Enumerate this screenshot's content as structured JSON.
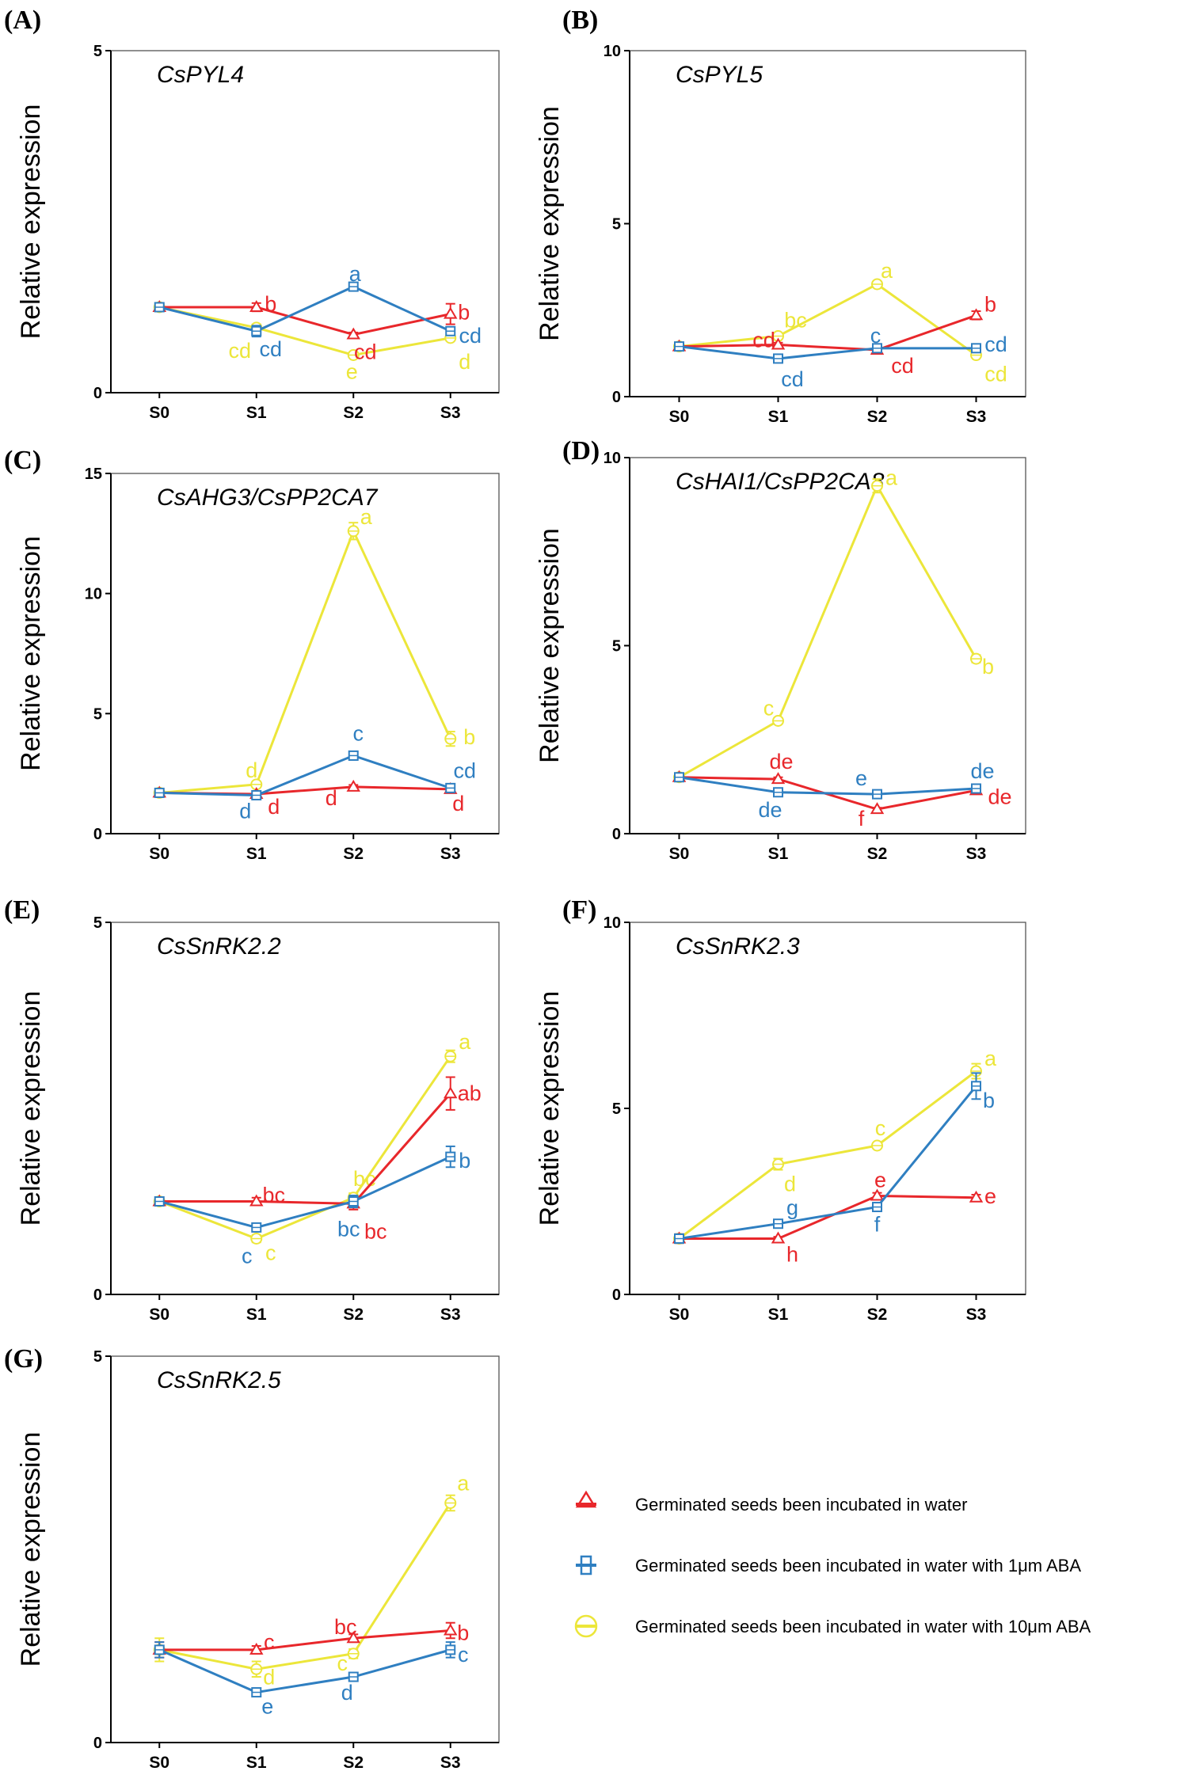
{
  "colors": {
    "water": "#e8272b",
    "aba1": "#2f7fc1",
    "aba10": "#ece63a",
    "axis": "#000000",
    "frame": "#555555"
  },
  "legend": {
    "items": [
      {
        "series": "water",
        "marker": "triangle",
        "label": "Germinated seeds been incubated in water"
      },
      {
        "series": "aba1",
        "marker": "square",
        "label": "Germinated seeds been incubated in water with 1μm ABA"
      },
      {
        "series": "aba10",
        "marker": "circle",
        "label": "Germinated seeds been incubated in water with 10μm ABA"
      }
    ]
  },
  "chart_data": [
    {
      "type": "line",
      "panel": "(A)",
      "title": "CsPYL4",
      "ylabel": "Relative expression",
      "categories": [
        "S0",
        "S1",
        "S2",
        "S3"
      ],
      "ylim": [
        0,
        5
      ],
      "yticks": [
        0,
        5
      ],
      "series": [
        {
          "key": "water",
          "values": [
            1.25,
            1.25,
            0.85,
            1.15
          ],
          "err": [
            0.04,
            0.06,
            0.03,
            0.15
          ],
          "letters": [
            "",
            "b",
            "cd",
            "b"
          ]
        },
        {
          "key": "aba1",
          "values": [
            1.25,
            0.9,
            1.55,
            0.9
          ],
          "err": [
            0.04,
            0.08,
            0.03,
            0.06
          ],
          "letters": [
            "",
            "cd",
            "a",
            "cd"
          ]
        },
        {
          "key": "aba10",
          "values": [
            1.25,
            0.95,
            0.55,
            0.8
          ],
          "err": [
            0.04,
            0.05,
            0.02,
            0.04
          ],
          "letters": [
            "",
            "cd",
            "e",
            "d"
          ]
        }
      ]
    },
    {
      "type": "line",
      "panel": "(B)",
      "title": "CsPYL5",
      "ylabel": "Relative expression",
      "categories": [
        "S0",
        "S1",
        "S2",
        "S3"
      ],
      "ylim": [
        0,
        10
      ],
      "yticks": [
        0,
        5,
        10
      ],
      "series": [
        {
          "key": "water",
          "values": [
            1.45,
            1.5,
            1.35,
            2.35
          ],
          "err": [
            0.05,
            0.06,
            0.05,
            0.12
          ],
          "letters": [
            "",
            "cd",
            "cd",
            "b"
          ]
        },
        {
          "key": "aba1",
          "values": [
            1.45,
            1.1,
            1.4,
            1.4
          ],
          "err": [
            0.05,
            0.1,
            0.06,
            0.06
          ],
          "letters": [
            "",
            "cd",
            "c",
            "cd"
          ]
        },
        {
          "key": "aba10",
          "values": [
            1.45,
            1.75,
            3.25,
            1.2
          ],
          "err": [
            0.05,
            0.06,
            0.08,
            0.05
          ],
          "letters": [
            "",
            "bc",
            "a",
            "cd"
          ]
        }
      ]
    },
    {
      "type": "line",
      "panel": "(C)",
      "title": "CsAHG3/CsPP2CA7",
      "ylabel": "Relative expression",
      "categories": [
        "S0",
        "S1",
        "S2",
        "S3"
      ],
      "ylim": [
        0,
        15
      ],
      "yticks": [
        0,
        5,
        10,
        15
      ],
      "series": [
        {
          "key": "water",
          "values": [
            1.7,
            1.65,
            1.95,
            1.85
          ],
          "err": [
            0.08,
            0.1,
            0.08,
            0.08
          ],
          "letters": [
            "",
            "d",
            "d",
            "d"
          ]
        },
        {
          "key": "aba1",
          "values": [
            1.7,
            1.6,
            3.25,
            1.9
          ],
          "err": [
            0.08,
            0.08,
            0.18,
            0.1
          ],
          "letters": [
            "",
            "d",
            "c",
            "cd"
          ]
        },
        {
          "key": "aba10",
          "values": [
            1.7,
            2.05,
            12.6,
            3.95
          ],
          "err": [
            0.08,
            0.1,
            0.35,
            0.3
          ],
          "letters": [
            "",
            "d",
            "a",
            "b"
          ]
        }
      ]
    },
    {
      "type": "line",
      "panel": "(D)",
      "title": "CsHAI1/CsPP2CA8",
      "ylabel": "Relative expression",
      "categories": [
        "S0",
        "S1",
        "S2",
        "S3"
      ],
      "ylim": [
        0,
        10
      ],
      "yticks": [
        0,
        5,
        10
      ],
      "series": [
        {
          "key": "water",
          "values": [
            1.5,
            1.45,
            0.65,
            1.15
          ],
          "err": [
            0.05,
            0.05,
            0.04,
            0.06
          ],
          "letters": [
            "",
            "de",
            "f",
            "de"
          ]
        },
        {
          "key": "aba1",
          "values": [
            1.5,
            1.1,
            1.05,
            1.2
          ],
          "err": [
            0.05,
            0.05,
            0.05,
            0.07
          ],
          "letters": [
            "",
            "de",
            "e",
            "de"
          ]
        },
        {
          "key": "aba10",
          "values": [
            1.5,
            3.0,
            9.25,
            4.65
          ],
          "err": [
            0.05,
            0.08,
            0.18,
            0.1
          ],
          "letters": [
            "",
            "c",
            "a",
            "b"
          ]
        }
      ]
    },
    {
      "type": "line",
      "panel": "(E)",
      "title": "CsSnRK2.2",
      "ylabel": "Relative expression",
      "categories": [
        "S0",
        "S1",
        "S2",
        "S3"
      ],
      "ylim": [
        0,
        5
      ],
      "yticks": [
        0,
        5
      ],
      "series": [
        {
          "key": "water",
          "values": [
            1.25,
            1.25,
            1.22,
            2.7
          ],
          "err": [
            0.04,
            0.05,
            0.08,
            0.22
          ],
          "letters": [
            "",
            "bc",
            "bc",
            "ab"
          ]
        },
        {
          "key": "aba1",
          "values": [
            1.25,
            0.9,
            1.25,
            1.85
          ],
          "err": [
            0.04,
            0.04,
            0.08,
            0.14
          ],
          "letters": [
            "",
            "c",
            "bc",
            "b"
          ]
        },
        {
          "key": "aba10",
          "values": [
            1.25,
            0.75,
            1.3,
            3.2
          ],
          "err": [
            0.04,
            0.05,
            0.06,
            0.08
          ],
          "letters": [
            "",
            "c",
            "bc",
            "a"
          ]
        }
      ]
    },
    {
      "type": "line",
      "panel": "(F)",
      "title": "CsSnRK2.3",
      "ylabel": "Relative expression",
      "categories": [
        "S0",
        "S1",
        "S2",
        "S3"
      ],
      "ylim": [
        0,
        10
      ],
      "yticks": [
        0,
        5,
        10
      ],
      "series": [
        {
          "key": "water",
          "values": [
            1.5,
            1.5,
            2.65,
            2.6
          ],
          "err": [
            0.12,
            0.05,
            0.08,
            0.08
          ],
          "letters": [
            "",
            "h",
            "e",
            "e"
          ]
        },
        {
          "key": "aba1",
          "values": [
            1.5,
            1.9,
            2.35,
            5.6
          ],
          "err": [
            0.12,
            0.06,
            0.08,
            0.35
          ],
          "letters": [
            "",
            "g",
            "f",
            "b"
          ]
        },
        {
          "key": "aba10",
          "values": [
            1.5,
            3.5,
            4.0,
            6.0
          ],
          "err": [
            0.12,
            0.15,
            0.06,
            0.2
          ],
          "letters": [
            "",
            "d",
            "c",
            "a"
          ]
        }
      ]
    },
    {
      "type": "line",
      "panel": "(G)",
      "title": "CsSnRK2.5",
      "ylabel": "Relative expression",
      "categories": [
        "S0",
        "S1",
        "S2",
        "S3"
      ],
      "ylim": [
        0,
        5
      ],
      "yticks": [
        0,
        5
      ],
      "series": [
        {
          "key": "water",
          "values": [
            1.2,
            1.2,
            1.35,
            1.45
          ],
          "err": [
            0.1,
            0.05,
            0.05,
            0.1
          ],
          "letters": [
            "",
            "c",
            "bc",
            "b"
          ]
        },
        {
          "key": "aba1",
          "values": [
            1.2,
            0.65,
            0.85,
            1.2
          ],
          "err": [
            0.1,
            0.04,
            0.04,
            0.1
          ],
          "letters": [
            "",
            "e",
            "d",
            "c"
          ]
        },
        {
          "key": "aba10",
          "values": [
            1.2,
            0.95,
            1.15,
            3.1
          ],
          "err": [
            0.15,
            0.1,
            0.06,
            0.1
          ],
          "letters": [
            "",
            "d",
            "c",
            "a"
          ]
        }
      ]
    }
  ]
}
